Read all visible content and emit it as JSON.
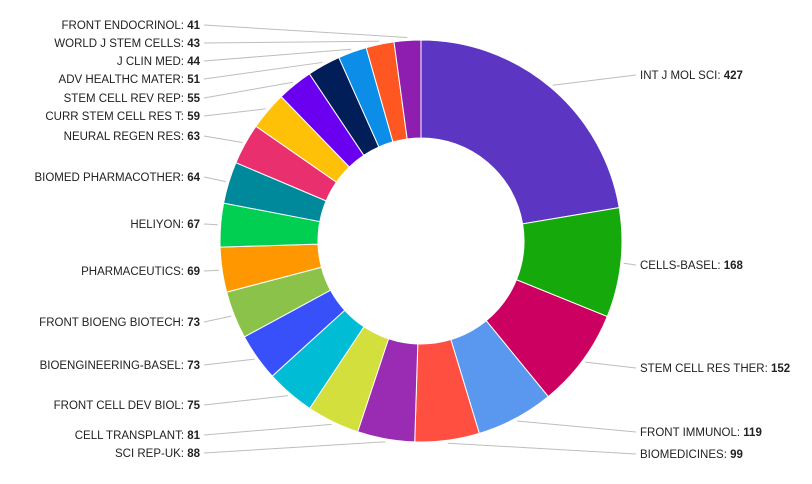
{
  "chart_data": {
    "type": "pie",
    "donut": true,
    "title": "",
    "legend": "none",
    "label_separator": ": ",
    "slices": [
      {
        "label": "INT J MOL SCI",
        "value": 427,
        "color": "#5c35c2"
      },
      {
        "label": "CELLS-BASEL",
        "value": 168,
        "color": "#16a90b"
      },
      {
        "label": "STEM CELL RES THER",
        "value": 152,
        "color": "#cc0060"
      },
      {
        "label": "FRONT IMMUNOL",
        "value": 119,
        "color": "#5a97ef"
      },
      {
        "label": "BIOMEDICINES",
        "value": 99,
        "color": "#ff4f40"
      },
      {
        "label": "SCI REP-UK",
        "value": 88,
        "color": "#9a2bb3"
      },
      {
        "label": "CELL TRANSPLANT",
        "value": 81,
        "color": "#d3df3c"
      },
      {
        "label": "FRONT CELL DEV BIOL",
        "value": 75,
        "color": "#00bcd5"
      },
      {
        "label": "BIOENGINEERING-BASEL",
        "value": 73,
        "color": "#3850fa"
      },
      {
        "label": "FRONT BIOENG BIOTECH",
        "value": 73,
        "color": "#8bc34a"
      },
      {
        "label": "PHARMACEUTICS",
        "value": 69,
        "color": "#ff9800"
      },
      {
        "label": "HELIYON",
        "value": 67,
        "color": "#00cf52"
      },
      {
        "label": "BIOMED PHARMACOTHER",
        "value": 64,
        "color": "#00899a"
      },
      {
        "label": "NEURAL REGEN RES",
        "value": 63,
        "color": "#ea2f6e"
      },
      {
        "label": "CURR STEM CELL RES T",
        "value": 59,
        "color": "#ffc107"
      },
      {
        "label": "STEM CELL REV REP",
        "value": 55,
        "color": "#6b00f0"
      },
      {
        "label": "ADV HEALTHC MATER",
        "value": 51,
        "color": "#021e58"
      },
      {
        "label": "J CLIN MED",
        "value": 44,
        "color": "#0b8de8"
      },
      {
        "label": "WORLD J STEM CELLS",
        "value": 43,
        "color": "#ff5722"
      },
      {
        "label": "FRONT ENDOCRINOL",
        "value": 41,
        "color": "#8e1eb0"
      }
    ]
  }
}
